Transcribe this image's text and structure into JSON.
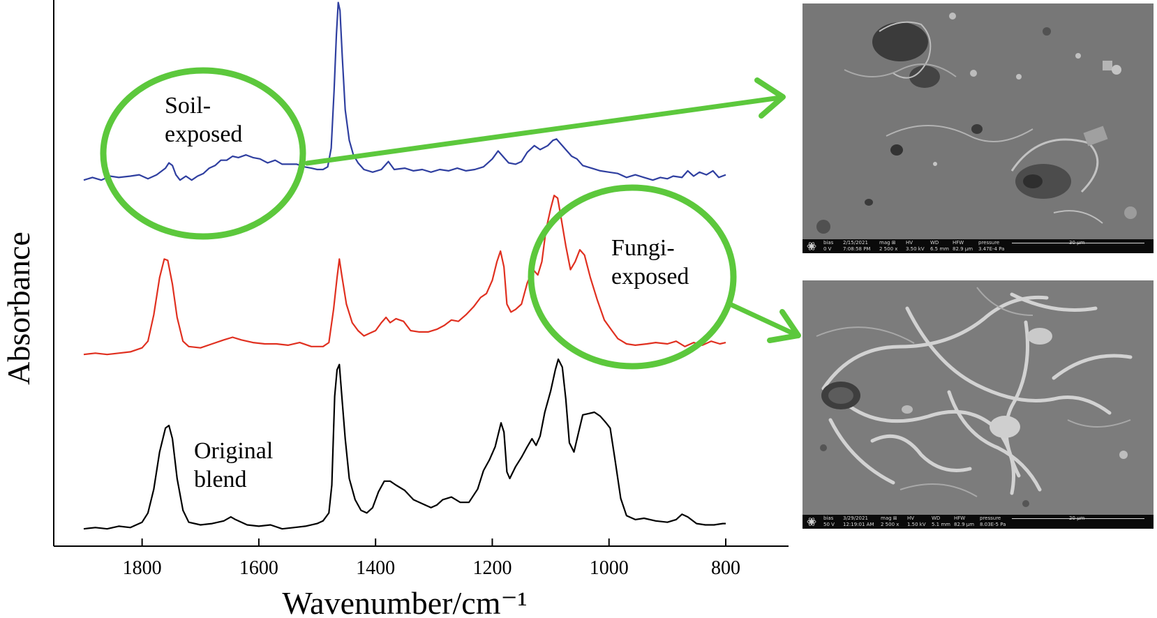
{
  "chart_data": {
    "type": "line",
    "xlabel": "Wavenumber/cm⁻¹",
    "ylabel": "Absorbance",
    "xlim": [
      1900,
      700
    ],
    "x_ticks": [
      1800,
      1600,
      1400,
      1200,
      1000,
      800
    ],
    "x_reversed": true,
    "y_ticks_shown": false,
    "grid": false,
    "series": [
      {
        "color": "#000000",
        "points": [
          [
            1900,
            0.02
          ],
          [
            1880,
            0.03
          ],
          [
            1860,
            0.02
          ],
          [
            1840,
            0.04
          ],
          [
            1820,
            0.03
          ],
          [
            1800,
            0.07
          ],
          [
            1790,
            0.14
          ],
          [
            1780,
            0.32
          ],
          [
            1770,
            0.6
          ],
          [
            1760,
            0.78
          ],
          [
            1754,
            0.8
          ],
          [
            1748,
            0.7
          ],
          [
            1740,
            0.4
          ],
          [
            1730,
            0.16
          ],
          [
            1720,
            0.07
          ],
          [
            1700,
            0.05
          ],
          [
            1680,
            0.06
          ],
          [
            1660,
            0.08
          ],
          [
            1648,
            0.11
          ],
          [
            1640,
            0.09
          ],
          [
            1620,
            0.05
          ],
          [
            1600,
            0.04
          ],
          [
            1580,
            0.05
          ],
          [
            1560,
            0.02
          ],
          [
            1540,
            0.03
          ],
          [
            1520,
            0.04
          ],
          [
            1500,
            0.06
          ],
          [
            1490,
            0.08
          ],
          [
            1480,
            0.14
          ],
          [
            1475,
            0.35
          ],
          [
            1470,
            1.02
          ],
          [
            1466,
            1.22
          ],
          [
            1462,
            1.26
          ],
          [
            1458,
            1.03
          ],
          [
            1452,
            0.7
          ],
          [
            1445,
            0.4
          ],
          [
            1435,
            0.24
          ],
          [
            1425,
            0.16
          ],
          [
            1415,
            0.14
          ],
          [
            1405,
            0.18
          ],
          [
            1395,
            0.3
          ],
          [
            1385,
            0.38
          ],
          [
            1375,
            0.38
          ],
          [
            1365,
            0.35
          ],
          [
            1350,
            0.31
          ],
          [
            1335,
            0.24
          ],
          [
            1320,
            0.21
          ],
          [
            1305,
            0.18
          ],
          [
            1295,
            0.2
          ],
          [
            1285,
            0.24
          ],
          [
            1270,
            0.26
          ],
          [
            1255,
            0.22
          ],
          [
            1240,
            0.22
          ],
          [
            1225,
            0.32
          ],
          [
            1215,
            0.46
          ],
          [
            1205,
            0.54
          ],
          [
            1195,
            0.64
          ],
          [
            1185,
            0.82
          ],
          [
            1180,
            0.75
          ],
          [
            1175,
            0.45
          ],
          [
            1170,
            0.4
          ],
          [
            1160,
            0.49
          ],
          [
            1150,
            0.56
          ],
          [
            1140,
            0.64
          ],
          [
            1132,
            0.7
          ],
          [
            1125,
            0.65
          ],
          [
            1118,
            0.72
          ],
          [
            1110,
            0.9
          ],
          [
            1100,
            1.06
          ],
          [
            1092,
            1.22
          ],
          [
            1087,
            1.3
          ],
          [
            1080,
            1.24
          ],
          [
            1074,
            1.0
          ],
          [
            1068,
            0.67
          ],
          [
            1060,
            0.6
          ],
          [
            1052,
            0.75
          ],
          [
            1045,
            0.88
          ],
          [
            1035,
            0.89
          ],
          [
            1025,
            0.9
          ],
          [
            1015,
            0.87
          ],
          [
            1005,
            0.82
          ],
          [
            998,
            0.78
          ],
          [
            990,
            0.55
          ],
          [
            980,
            0.25
          ],
          [
            970,
            0.12
          ],
          [
            955,
            0.09
          ],
          [
            940,
            0.1
          ],
          [
            920,
            0.08
          ],
          [
            900,
            0.07
          ],
          [
            885,
            0.09
          ],
          [
            875,
            0.13
          ],
          [
            865,
            0.11
          ],
          [
            850,
            0.06
          ],
          [
            835,
            0.05
          ],
          [
            820,
            0.05
          ],
          [
            805,
            0.06
          ],
          [
            800,
            0.06
          ]
        ]
      },
      {
        "color": "#e03020",
        "points": [
          [
            1900,
            0.02
          ],
          [
            1880,
            0.03
          ],
          [
            1860,
            0.02
          ],
          [
            1840,
            0.03
          ],
          [
            1820,
            0.04
          ],
          [
            1800,
            0.07
          ],
          [
            1790,
            0.12
          ],
          [
            1780,
            0.32
          ],
          [
            1770,
            0.6
          ],
          [
            1762,
            0.74
          ],
          [
            1756,
            0.73
          ],
          [
            1748,
            0.55
          ],
          [
            1740,
            0.3
          ],
          [
            1730,
            0.12
          ],
          [
            1720,
            0.08
          ],
          [
            1700,
            0.07
          ],
          [
            1680,
            0.1
          ],
          [
            1660,
            0.13
          ],
          [
            1645,
            0.15
          ],
          [
            1630,
            0.13
          ],
          [
            1610,
            0.11
          ],
          [
            1590,
            0.1
          ],
          [
            1570,
            0.1
          ],
          [
            1550,
            0.09
          ],
          [
            1530,
            0.11
          ],
          [
            1510,
            0.08
          ],
          [
            1490,
            0.08
          ],
          [
            1480,
            0.11
          ],
          [
            1472,
            0.36
          ],
          [
            1466,
            0.6
          ],
          [
            1462,
            0.74
          ],
          [
            1458,
            0.62
          ],
          [
            1450,
            0.4
          ],
          [
            1440,
            0.26
          ],
          [
            1430,
            0.2
          ],
          [
            1420,
            0.16
          ],
          [
            1410,
            0.18
          ],
          [
            1400,
            0.2
          ],
          [
            1390,
            0.26
          ],
          [
            1382,
            0.3
          ],
          [
            1375,
            0.26
          ],
          [
            1365,
            0.29
          ],
          [
            1352,
            0.27
          ],
          [
            1340,
            0.2
          ],
          [
            1325,
            0.19
          ],
          [
            1310,
            0.19
          ],
          [
            1295,
            0.21
          ],
          [
            1282,
            0.24
          ],
          [
            1270,
            0.28
          ],
          [
            1258,
            0.27
          ],
          [
            1245,
            0.32
          ],
          [
            1232,
            0.38
          ],
          [
            1220,
            0.45
          ],
          [
            1210,
            0.48
          ],
          [
            1200,
            0.58
          ],
          [
            1192,
            0.72
          ],
          [
            1186,
            0.8
          ],
          [
            1180,
            0.68
          ],
          [
            1175,
            0.4
          ],
          [
            1168,
            0.34
          ],
          [
            1160,
            0.36
          ],
          [
            1150,
            0.4
          ],
          [
            1140,
            0.56
          ],
          [
            1130,
            0.66
          ],
          [
            1122,
            0.62
          ],
          [
            1115,
            0.72
          ],
          [
            1108,
            0.96
          ],
          [
            1100,
            1.12
          ],
          [
            1094,
            1.22
          ],
          [
            1088,
            1.2
          ],
          [
            1082,
            1.05
          ],
          [
            1074,
            0.84
          ],
          [
            1066,
            0.66
          ],
          [
            1058,
            0.72
          ],
          [
            1050,
            0.81
          ],
          [
            1042,
            0.77
          ],
          [
            1032,
            0.6
          ],
          [
            1020,
            0.43
          ],
          [
            1008,
            0.28
          ],
          [
            995,
            0.2
          ],
          [
            985,
            0.14
          ],
          [
            970,
            0.1
          ],
          [
            955,
            0.09
          ],
          [
            935,
            0.1
          ],
          [
            920,
            0.11
          ],
          [
            900,
            0.1
          ],
          [
            885,
            0.12
          ],
          [
            870,
            0.08
          ],
          [
            855,
            0.11
          ],
          [
            840,
            0.09
          ],
          [
            825,
            0.12
          ],
          [
            810,
            0.1
          ],
          [
            800,
            0.11
          ]
        ]
      },
      {
        "color": "#2f3fa0",
        "points": [
          [
            1900,
            0.02
          ],
          [
            1885,
            0.04
          ],
          [
            1870,
            0.02
          ],
          [
            1855,
            0.05
          ],
          [
            1840,
            0.04
          ],
          [
            1820,
            0.05
          ],
          [
            1805,
            0.06
          ],
          [
            1790,
            0.03
          ],
          [
            1775,
            0.06
          ],
          [
            1760,
            0.11
          ],
          [
            1754,
            0.15
          ],
          [
            1748,
            0.13
          ],
          [
            1742,
            0.06
          ],
          [
            1735,
            0.02
          ],
          [
            1725,
            0.05
          ],
          [
            1715,
            0.02
          ],
          [
            1705,
            0.05
          ],
          [
            1695,
            0.07
          ],
          [
            1685,
            0.11
          ],
          [
            1675,
            0.13
          ],
          [
            1665,
            0.17
          ],
          [
            1655,
            0.17
          ],
          [
            1645,
            0.2
          ],
          [
            1635,
            0.19
          ],
          [
            1622,
            0.21
          ],
          [
            1610,
            0.19
          ],
          [
            1598,
            0.18
          ],
          [
            1585,
            0.15
          ],
          [
            1572,
            0.17
          ],
          [
            1560,
            0.14
          ],
          [
            1548,
            0.14
          ],
          [
            1535,
            0.14
          ],
          [
            1522,
            0.12
          ],
          [
            1510,
            0.11
          ],
          [
            1500,
            0.1
          ],
          [
            1490,
            0.1
          ],
          [
            1482,
            0.12
          ],
          [
            1476,
            0.26
          ],
          [
            1471,
            0.7
          ],
          [
            1467,
            1.12
          ],
          [
            1464,
            1.36
          ],
          [
            1461,
            1.3
          ],
          [
            1457,
            0.95
          ],
          [
            1452,
            0.55
          ],
          [
            1445,
            0.32
          ],
          [
            1438,
            0.21
          ],
          [
            1430,
            0.15
          ],
          [
            1420,
            0.1
          ],
          [
            1405,
            0.08
          ],
          [
            1390,
            0.1
          ],
          [
            1378,
            0.16
          ],
          [
            1368,
            0.1
          ],
          [
            1350,
            0.11
          ],
          [
            1335,
            0.09
          ],
          [
            1320,
            0.1
          ],
          [
            1305,
            0.08
          ],
          [
            1290,
            0.1
          ],
          [
            1275,
            0.09
          ],
          [
            1260,
            0.11
          ],
          [
            1245,
            0.09
          ],
          [
            1230,
            0.1
          ],
          [
            1215,
            0.12
          ],
          [
            1200,
            0.18
          ],
          [
            1190,
            0.24
          ],
          [
            1182,
            0.2
          ],
          [
            1172,
            0.15
          ],
          [
            1160,
            0.14
          ],
          [
            1150,
            0.16
          ],
          [
            1140,
            0.23
          ],
          [
            1128,
            0.28
          ],
          [
            1118,
            0.25
          ],
          [
            1105,
            0.28
          ],
          [
            1096,
            0.32
          ],
          [
            1090,
            0.33
          ],
          [
            1082,
            0.29
          ],
          [
            1074,
            0.25
          ],
          [
            1064,
            0.2
          ],
          [
            1055,
            0.18
          ],
          [
            1045,
            0.13
          ],
          [
            1030,
            0.11
          ],
          [
            1015,
            0.09
          ],
          [
            1000,
            0.08
          ],
          [
            985,
            0.07
          ],
          [
            970,
            0.04
          ],
          [
            955,
            0.06
          ],
          [
            940,
            0.04
          ],
          [
            925,
            0.02
          ],
          [
            912,
            0.04
          ],
          [
            900,
            0.03
          ],
          [
            890,
            0.05
          ],
          [
            875,
            0.04
          ],
          [
            865,
            0.09
          ],
          [
            855,
            0.05
          ],
          [
            845,
            0.08
          ],
          [
            833,
            0.06
          ],
          [
            822,
            0.09
          ],
          [
            812,
            0.04
          ],
          [
            800,
            0.06
          ]
        ]
      }
    ],
    "annotations": {
      "soil_line1": "Soil-",
      "soil_line2": "exposed",
      "fungi_line1": "Fungi-",
      "fungi_line2": "exposed",
      "original_line1": "Original",
      "original_line2": "blend"
    },
    "highlight_color": "#5cc83c"
  },
  "sem_images": {
    "top": {
      "row1": [
        "bias",
        "2/15/2021",
        "mag ⊞",
        "HV",
        "WD",
        "HFW",
        "pressure"
      ],
      "row2": [
        "0 V",
        "7:08:58 PM",
        "2 500 x",
        "3.50 kV",
        "6.5 mm",
        "82.9 µm",
        "3.47E-4 Pa"
      ],
      "scale": "30 µm"
    },
    "bottom": {
      "row1": [
        "bias",
        "3/29/2021",
        "mag ⊞",
        "HV",
        "WD",
        "HFW",
        "pressure"
      ],
      "row2": [
        "50 V",
        "12:19:01 AM",
        "2 500 x",
        "1.50 kV",
        "5.1 mm",
        "82.9 µm",
        "8.03E-5 Pa"
      ],
      "scale": "20 µm"
    }
  }
}
